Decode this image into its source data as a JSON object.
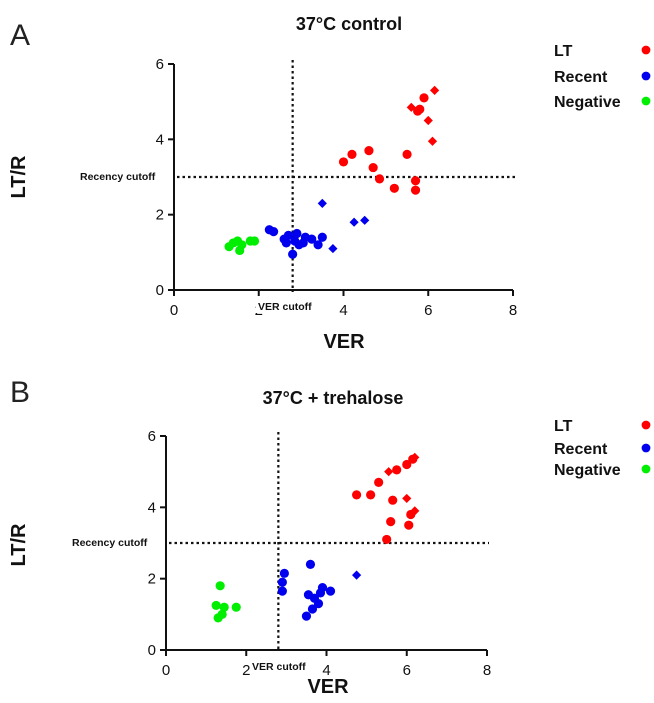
{
  "chart_data": [
    {
      "type": "scatter",
      "panel_label": "A",
      "title": "37°C control",
      "xlabel": "VER",
      "ylabel": "LT/R",
      "xlim": [
        0,
        8
      ],
      "ylim": [
        0,
        6
      ],
      "xticks": [
        "0",
        "2",
        "4",
        "6",
        "8"
      ],
      "yticks": [
        "0",
        "2",
        "4",
        "6"
      ],
      "grid": false,
      "legend_position": "top-right, outside plot",
      "cutoffs": {
        "ver": {
          "label": "VER cutoff",
          "value": 2.8
        },
        "recency": {
          "label": "Recency cutoff",
          "value": 3.0
        }
      },
      "series": [
        {
          "name": "LT",
          "color": "#ff0000",
          "points": [
            {
              "x": 4.0,
              "y": 3.4,
              "marker": "circle"
            },
            {
              "x": 4.2,
              "y": 3.6,
              "marker": "circle"
            },
            {
              "x": 4.6,
              "y": 3.7,
              "marker": "circle"
            },
            {
              "x": 4.7,
              "y": 3.25,
              "marker": "circle"
            },
            {
              "x": 4.85,
              "y": 2.95,
              "marker": "circle"
            },
            {
              "x": 5.2,
              "y": 2.7,
              "marker": "circle"
            },
            {
              "x": 5.5,
              "y": 3.6,
              "marker": "circle"
            },
            {
              "x": 5.7,
              "y": 2.9,
              "marker": "circle"
            },
            {
              "x": 5.7,
              "y": 2.65,
              "marker": "circle"
            },
            {
              "x": 5.75,
              "y": 4.75,
              "marker": "circle"
            },
            {
              "x": 5.8,
              "y": 4.8,
              "marker": "circle"
            },
            {
              "x": 5.9,
              "y": 5.1,
              "marker": "circle"
            },
            {
              "x": 5.6,
              "y": 4.85,
              "marker": "diamond"
            },
            {
              "x": 6.0,
              "y": 4.5,
              "marker": "diamond"
            },
            {
              "x": 6.1,
              "y": 3.95,
              "marker": "diamond"
            },
            {
              "x": 6.15,
              "y": 5.3,
              "marker": "diamond"
            }
          ]
        },
        {
          "name": "Recent",
          "color": "#0000ee",
          "points": [
            {
              "x": 2.25,
              "y": 1.6,
              "marker": "circle"
            },
            {
              "x": 2.35,
              "y": 1.55,
              "marker": "circle"
            },
            {
              "x": 2.6,
              "y": 1.35,
              "marker": "circle"
            },
            {
              "x": 2.65,
              "y": 1.25,
              "marker": "circle"
            },
            {
              "x": 2.7,
              "y": 1.45,
              "marker": "circle"
            },
            {
              "x": 2.8,
              "y": 0.95,
              "marker": "circle"
            },
            {
              "x": 2.85,
              "y": 1.3,
              "marker": "circle"
            },
            {
              "x": 2.9,
              "y": 1.5,
              "marker": "circle"
            },
            {
              "x": 2.95,
              "y": 1.2,
              "marker": "circle"
            },
            {
              "x": 3.05,
              "y": 1.25,
              "marker": "circle"
            },
            {
              "x": 3.1,
              "y": 1.4,
              "marker": "circle"
            },
            {
              "x": 3.25,
              "y": 1.35,
              "marker": "circle"
            },
            {
              "x": 3.4,
              "y": 1.2,
              "marker": "circle"
            },
            {
              "x": 3.5,
              "y": 1.4,
              "marker": "circle"
            },
            {
              "x": 3.5,
              "y": 2.3,
              "marker": "diamond"
            },
            {
              "x": 3.75,
              "y": 1.1,
              "marker": "diamond"
            },
            {
              "x": 4.25,
              "y": 1.8,
              "marker": "diamond"
            },
            {
              "x": 4.5,
              "y": 1.85,
              "marker": "diamond"
            }
          ]
        },
        {
          "name": "Negative",
          "color": "#00ee00",
          "points": [
            {
              "x": 1.3,
              "y": 1.15,
              "marker": "circle"
            },
            {
              "x": 1.4,
              "y": 1.25,
              "marker": "circle"
            },
            {
              "x": 1.5,
              "y": 1.3,
              "marker": "circle"
            },
            {
              "x": 1.55,
              "y": 1.05,
              "marker": "circle"
            },
            {
              "x": 1.6,
              "y": 1.2,
              "marker": "circle"
            },
            {
              "x": 1.8,
              "y": 1.3,
              "marker": "circle"
            },
            {
              "x": 1.9,
              "y": 1.3,
              "marker": "circle"
            }
          ]
        }
      ]
    },
    {
      "type": "scatter",
      "panel_label": "B",
      "title": "37°C + trehalose",
      "xlabel": "VER",
      "ylabel": "LT/R",
      "xlim": [
        0,
        8
      ],
      "ylim": [
        0,
        6
      ],
      "xticks": [
        "0",
        "2",
        "4",
        "6",
        "8"
      ],
      "yticks": [
        "0",
        "2",
        "4",
        "6"
      ],
      "grid": false,
      "legend_position": "top-right, outside plot",
      "cutoffs": {
        "ver": {
          "label": "VER cutoff",
          "value": 2.8
        },
        "recency": {
          "label": "Recency cutoff",
          "value": 3.0
        }
      },
      "series": [
        {
          "name": "LT",
          "color": "#ff0000",
          "points": [
            {
              "x": 4.75,
              "y": 4.35,
              "marker": "circle"
            },
            {
              "x": 5.1,
              "y": 4.35,
              "marker": "circle"
            },
            {
              "x": 5.3,
              "y": 4.7,
              "marker": "circle"
            },
            {
              "x": 5.5,
              "y": 3.1,
              "marker": "circle"
            },
            {
              "x": 5.6,
              "y": 3.6,
              "marker": "circle"
            },
            {
              "x": 5.65,
              "y": 4.2,
              "marker": "circle"
            },
            {
              "x": 5.75,
              "y": 5.05,
              "marker": "circle"
            },
            {
              "x": 6.0,
              "y": 5.2,
              "marker": "circle"
            },
            {
              "x": 6.05,
              "y": 3.5,
              "marker": "circle"
            },
            {
              "x": 6.1,
              "y": 3.8,
              "marker": "circle"
            },
            {
              "x": 6.15,
              "y": 5.35,
              "marker": "circle"
            },
            {
              "x": 5.55,
              "y": 5.0,
              "marker": "diamond"
            },
            {
              "x": 6.0,
              "y": 4.25,
              "marker": "diamond"
            },
            {
              "x": 6.2,
              "y": 3.9,
              "marker": "diamond"
            },
            {
              "x": 6.2,
              "y": 5.4,
              "marker": "diamond"
            }
          ]
        },
        {
          "name": "Recent",
          "color": "#0000ee",
          "points": [
            {
              "x": 2.9,
              "y": 1.65,
              "marker": "circle"
            },
            {
              "x": 2.9,
              "y": 1.9,
              "marker": "circle"
            },
            {
              "x": 2.95,
              "y": 2.15,
              "marker": "circle"
            },
            {
              "x": 3.5,
              "y": 0.95,
              "marker": "circle"
            },
            {
              "x": 3.55,
              "y": 1.55,
              "marker": "circle"
            },
            {
              "x": 3.6,
              "y": 2.4,
              "marker": "circle"
            },
            {
              "x": 3.65,
              "y": 1.15,
              "marker": "circle"
            },
            {
              "x": 3.7,
              "y": 1.45,
              "marker": "circle"
            },
            {
              "x": 3.8,
              "y": 1.3,
              "marker": "circle"
            },
            {
              "x": 3.85,
              "y": 1.6,
              "marker": "circle"
            },
            {
              "x": 3.9,
              "y": 1.75,
              "marker": "circle"
            },
            {
              "x": 4.1,
              "y": 1.65,
              "marker": "circle"
            },
            {
              "x": 4.75,
              "y": 2.1,
              "marker": "diamond"
            }
          ]
        },
        {
          "name": "Negative",
          "color": "#00ee00",
          "points": [
            {
              "x": 1.25,
              "y": 1.25,
              "marker": "circle"
            },
            {
              "x": 1.3,
              "y": 0.9,
              "marker": "circle"
            },
            {
              "x": 1.35,
              "y": 1.8,
              "marker": "circle"
            },
            {
              "x": 1.4,
              "y": 1.0,
              "marker": "circle"
            },
            {
              "x": 1.45,
              "y": 1.2,
              "marker": "circle"
            },
            {
              "x": 1.75,
              "y": 1.2,
              "marker": "circle"
            }
          ]
        }
      ]
    }
  ]
}
